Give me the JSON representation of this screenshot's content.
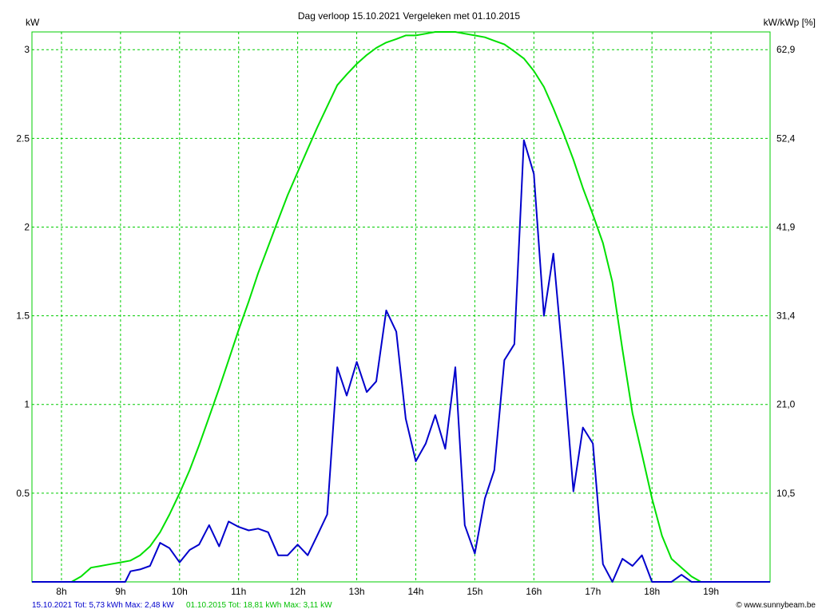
{
  "chart_data": {
    "type": "line",
    "title": "Dag  verloop 15.10.2021   Vergeleken met 01.10.2015",
    "ylabel_left": "kW",
    "ylabel_right": "kW/kWp [%]",
    "grid": true,
    "x_unit": "hour of day",
    "xlim": [
      7.5,
      20.0
    ],
    "ylim": [
      0,
      3.1
    ],
    "x_ticks": [
      {
        "value": 8,
        "label": "8h"
      },
      {
        "value": 9,
        "label": "9h"
      },
      {
        "value": 10,
        "label": "10h"
      },
      {
        "value": 11,
        "label": "11h"
      },
      {
        "value": 12,
        "label": "12h"
      },
      {
        "value": 13,
        "label": "13h"
      },
      {
        "value": 14,
        "label": "14h"
      },
      {
        "value": 15,
        "label": "15h"
      },
      {
        "value": 16,
        "label": "16h"
      },
      {
        "value": 17,
        "label": "17h"
      },
      {
        "value": 18,
        "label": "18h"
      },
      {
        "value": 19,
        "label": "19h"
      }
    ],
    "y_ticks_left": [
      {
        "value": 0.5,
        "label": "0.5"
      },
      {
        "value": 1.0,
        "label": "1"
      },
      {
        "value": 1.5,
        "label": "1.5"
      },
      {
        "value": 2.0,
        "label": "2"
      },
      {
        "value": 2.5,
        "label": "2.5"
      },
      {
        "value": 3.0,
        "label": "3"
      }
    ],
    "y_ticks_right": [
      {
        "value": 0.5,
        "label": "10,5"
      },
      {
        "value": 1.0,
        "label": "21,0"
      },
      {
        "value": 1.5,
        "label": "31,4"
      },
      {
        "value": 2.0,
        "label": "41,9"
      },
      {
        "value": 2.5,
        "label": "52,4"
      },
      {
        "value": 3.0,
        "label": "62,9"
      }
    ],
    "series": [
      {
        "color": "#00e000",
        "points": [
          [
            7.5,
            0
          ],
          [
            8.0,
            0
          ],
          [
            8.17,
            0
          ],
          [
            8.33,
            0.03
          ],
          [
            8.5,
            0.08
          ],
          [
            8.67,
            0.09
          ],
          [
            8.83,
            0.1
          ],
          [
            9.0,
            0.11
          ],
          [
            9.17,
            0.12
          ],
          [
            9.33,
            0.15
          ],
          [
            9.5,
            0.2
          ],
          [
            9.67,
            0.28
          ],
          [
            9.83,
            0.38
          ],
          [
            10.0,
            0.5
          ],
          [
            10.17,
            0.63
          ],
          [
            10.33,
            0.77
          ],
          [
            10.5,
            0.93
          ],
          [
            10.67,
            1.09
          ],
          [
            10.83,
            1.25
          ],
          [
            11.0,
            1.42
          ],
          [
            11.17,
            1.58
          ],
          [
            11.33,
            1.74
          ],
          [
            11.5,
            1.89
          ],
          [
            11.67,
            2.04
          ],
          [
            11.83,
            2.18
          ],
          [
            12.0,
            2.31
          ],
          [
            12.17,
            2.44
          ],
          [
            12.33,
            2.56
          ],
          [
            12.5,
            2.68
          ],
          [
            12.67,
            2.8
          ],
          [
            12.83,
            2.86
          ],
          [
            13.0,
            2.92
          ],
          [
            13.17,
            2.97
          ],
          [
            13.33,
            3.01
          ],
          [
            13.5,
            3.04
          ],
          [
            13.67,
            3.06
          ],
          [
            13.83,
            3.08
          ],
          [
            14.0,
            3.08
          ],
          [
            14.17,
            3.09
          ],
          [
            14.33,
            3.1
          ],
          [
            14.5,
            3.1
          ],
          [
            14.67,
            3.1
          ],
          [
            14.83,
            3.09
          ],
          [
            15.0,
            3.08
          ],
          [
            15.17,
            3.07
          ],
          [
            15.33,
            3.05
          ],
          [
            15.5,
            3.03
          ],
          [
            15.67,
            2.99
          ],
          [
            15.83,
            2.95
          ],
          [
            16.0,
            2.88
          ],
          [
            16.17,
            2.79
          ],
          [
            16.33,
            2.67
          ],
          [
            16.5,
            2.53
          ],
          [
            16.67,
            2.38
          ],
          [
            16.83,
            2.22
          ],
          [
            17.0,
            2.07
          ],
          [
            17.17,
            1.91
          ],
          [
            17.33,
            1.69
          ],
          [
            17.5,
            1.31
          ],
          [
            17.67,
            0.95
          ],
          [
            17.83,
            0.72
          ],
          [
            18.0,
            0.47
          ],
          [
            18.17,
            0.26
          ],
          [
            18.33,
            0.13
          ],
          [
            18.5,
            0.08
          ],
          [
            18.67,
            0.03
          ],
          [
            18.83,
            0
          ],
          [
            19.0,
            0
          ],
          [
            19.17,
            0
          ],
          [
            20.0,
            0
          ]
        ]
      },
      {
        "color": "#0000cc",
        "points": [
          [
            7.5,
            0
          ],
          [
            9.0,
            0
          ],
          [
            9.08,
            0
          ],
          [
            9.17,
            0.06
          ],
          [
            9.33,
            0.07
          ],
          [
            9.5,
            0.09
          ],
          [
            9.67,
            0.22
          ],
          [
            9.83,
            0.19
          ],
          [
            10.0,
            0.11
          ],
          [
            10.17,
            0.18
          ],
          [
            10.33,
            0.21
          ],
          [
            10.5,
            0.32
          ],
          [
            10.67,
            0.2
          ],
          [
            10.83,
            0.34
          ],
          [
            11.0,
            0.31
          ],
          [
            11.17,
            0.29
          ],
          [
            11.33,
            0.3
          ],
          [
            11.5,
            0.28
          ],
          [
            11.67,
            0.15
          ],
          [
            11.83,
            0.15
          ],
          [
            12.0,
            0.21
          ],
          [
            12.17,
            0.15
          ],
          [
            12.33,
            0.26
          ],
          [
            12.5,
            0.38
          ],
          [
            12.67,
            1.21
          ],
          [
            12.83,
            1.05
          ],
          [
            13.0,
            1.24
          ],
          [
            13.17,
            1.07
          ],
          [
            13.33,
            1.13
          ],
          [
            13.5,
            1.53
          ],
          [
            13.67,
            1.41
          ],
          [
            13.83,
            0.92
          ],
          [
            14.0,
            0.68
          ],
          [
            14.17,
            0.78
          ],
          [
            14.33,
            0.94
          ],
          [
            14.5,
            0.75
          ],
          [
            14.67,
            1.21
          ],
          [
            14.83,
            0.32
          ],
          [
            15.0,
            0.16
          ],
          [
            15.17,
            0.47
          ],
          [
            15.33,
            0.63
          ],
          [
            15.5,
            1.25
          ],
          [
            15.67,
            1.34
          ],
          [
            15.83,
            2.49
          ],
          [
            16.0,
            2.3
          ],
          [
            16.17,
            1.5
          ],
          [
            16.33,
            1.85
          ],
          [
            16.5,
            1.22
          ],
          [
            16.67,
            0.51
          ],
          [
            16.83,
            0.87
          ],
          [
            17.0,
            0.78
          ],
          [
            17.17,
            0.1
          ],
          [
            17.33,
            0
          ],
          [
            17.5,
            0.13
          ],
          [
            17.67,
            0.09
          ],
          [
            17.83,
            0.15
          ],
          [
            18.0,
            0
          ],
          [
            18.17,
            0
          ],
          [
            18.33,
            0
          ],
          [
            18.5,
            0.04
          ],
          [
            18.67,
            0
          ],
          [
            20.0,
            0
          ]
        ]
      }
    ]
  },
  "footer": {
    "left1": "15.10.2021 Tot: 5,73 kWh Max: 2,48 kW",
    "left2": "01.10.2015 Tot: 18,81 kWh Max: 3,11 kW",
    "copyright": "© www.sunnybeam.be"
  },
  "colors": {
    "green": "#00e000",
    "blue": "#0000cc",
    "grid": "#00cc00"
  }
}
